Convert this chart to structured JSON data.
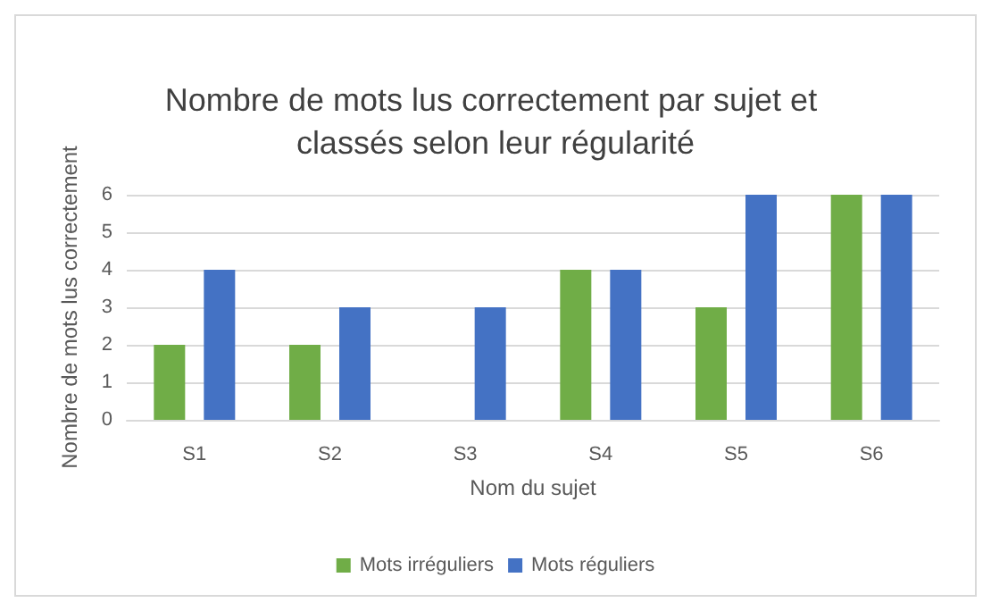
{
  "chart_data": {
    "type": "bar",
    "title": "Nombre de mots lus correctement par sujet et classés selon leur régularité",
    "xlabel": "Nom du sujet",
    "ylabel": "Nombre de mots lus correctement",
    "categories": [
      "S1",
      "S2",
      "S3",
      "S4",
      "S5",
      "S6"
    ],
    "series": [
      {
        "name": "Mots irréguliers",
        "color": "#70ad47",
        "values": [
          2,
          2,
          0,
          4,
          3,
          6
        ]
      },
      {
        "name": "Mots réguliers",
        "color": "#4472c4",
        "values": [
          4,
          3,
          3,
          4,
          6,
          6
        ]
      }
    ],
    "ylim": [
      0,
      6
    ],
    "yticks": [
      0,
      1,
      2,
      3,
      4,
      5,
      6
    ],
    "grid": "y",
    "legend": "bottom"
  }
}
